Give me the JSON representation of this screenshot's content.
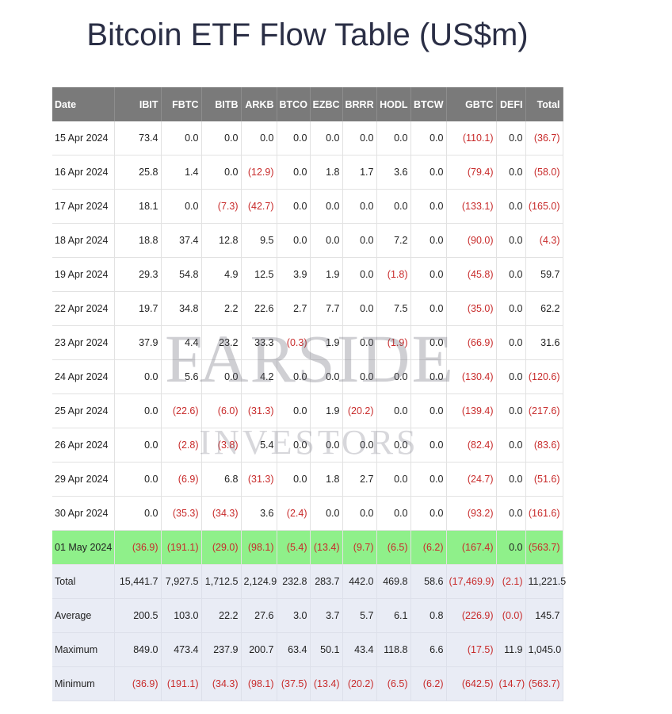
{
  "title": "Bitcoin ETF Flow Table (US$m)",
  "watermark": {
    "line1": "FARSIDE",
    "line2": "INVESTORS"
  },
  "colors": {
    "header_bg": "#7a7a7a",
    "negative": "#c82b2b",
    "highlight_row": "#8ff08a",
    "summary_bg": "#e9ecf5"
  },
  "table": {
    "headers": [
      "Date",
      "IBIT",
      "FBTC",
      "BITB",
      "ARKB",
      "BTCO",
      "EZBC",
      "BRRR",
      "HODL",
      "BTCW",
      "GBTC",
      "DEFI",
      "Total"
    ],
    "rows": [
      [
        "15 Apr 2024",
        "73.4",
        "0.0",
        "0.0",
        "0.0",
        "0.0",
        "0.0",
        "0.0",
        "0.0",
        "0.0",
        "(110.1)",
        "0.0",
        "(36.7)"
      ],
      [
        "16 Apr 2024",
        "25.8",
        "1.4",
        "0.0",
        "(12.9)",
        "0.0",
        "1.8",
        "1.7",
        "3.6",
        "0.0",
        "(79.4)",
        "0.0",
        "(58.0)"
      ],
      [
        "17 Apr 2024",
        "18.1",
        "0.0",
        "(7.3)",
        "(42.7)",
        "0.0",
        "0.0",
        "0.0",
        "0.0",
        "0.0",
        "(133.1)",
        "0.0",
        "(165.0)"
      ],
      [
        "18 Apr 2024",
        "18.8",
        "37.4",
        "12.8",
        "9.5",
        "0.0",
        "0.0",
        "0.0",
        "7.2",
        "0.0",
        "(90.0)",
        "0.0",
        "(4.3)"
      ],
      [
        "19 Apr 2024",
        "29.3",
        "54.8",
        "4.9",
        "12.5",
        "3.9",
        "1.9",
        "0.0",
        "(1.8)",
        "0.0",
        "(45.8)",
        "0.0",
        "59.7"
      ],
      [
        "22 Apr 2024",
        "19.7",
        "34.8",
        "2.2",
        "22.6",
        "2.7",
        "7.7",
        "0.0",
        "7.5",
        "0.0",
        "(35.0)",
        "0.0",
        "62.2"
      ],
      [
        "23 Apr 2024",
        "37.9",
        "4.4",
        "23.2",
        "33.3",
        "(0.3)",
        "1.9",
        "0.0",
        "(1.9)",
        "0.0",
        "(66.9)",
        "0.0",
        "31.6"
      ],
      [
        "24 Apr 2024",
        "0.0",
        "5.6",
        "0.0",
        "4.2",
        "0.0",
        "0.0",
        "0.0",
        "0.0",
        "0.0",
        "(130.4)",
        "0.0",
        "(120.6)"
      ],
      [
        "25 Apr 2024",
        "0.0",
        "(22.6)",
        "(6.0)",
        "(31.3)",
        "0.0",
        "1.9",
        "(20.2)",
        "0.0",
        "0.0",
        "(139.4)",
        "0.0",
        "(217.6)"
      ],
      [
        "26 Apr 2024",
        "0.0",
        "(2.8)",
        "(3.8)",
        "5.4",
        "0.0",
        "0.0",
        "0.0",
        "0.0",
        "0.0",
        "(82.4)",
        "0.0",
        "(83.6)"
      ],
      [
        "29 Apr 2024",
        "0.0",
        "(6.9)",
        "6.8",
        "(31.3)",
        "0.0",
        "1.8",
        "2.7",
        "0.0",
        "0.0",
        "(24.7)",
        "0.0",
        "(51.6)"
      ],
      [
        "30 Apr 2024",
        "0.0",
        "(35.3)",
        "(34.3)",
        "3.6",
        "(2.4)",
        "0.0",
        "0.0",
        "0.0",
        "0.0",
        "(93.2)",
        "0.0",
        "(161.6)"
      ],
      [
        "01 May 2024",
        "(36.9)",
        "(191.1)",
        "(29.0)",
        "(98.1)",
        "(5.4)",
        "(13.4)",
        "(9.7)",
        "(6.5)",
        "(6.2)",
        "(167.4)",
        "0.0",
        "(563.7)"
      ]
    ],
    "highlight_row_index": 12,
    "summary": [
      [
        "Total",
        "15,441.7",
        "7,927.5",
        "1,712.5",
        "2,124.9",
        "232.8",
        "283.7",
        "442.0",
        "469.8",
        "58.6",
        "(17,469.9)",
        "(2.1)",
        "11,221.5"
      ],
      [
        "Average",
        "200.5",
        "103.0",
        "22.2",
        "27.6",
        "3.0",
        "3.7",
        "5.7",
        "6.1",
        "0.8",
        "(226.9)",
        "(0.0)",
        "145.7"
      ],
      [
        "Maximum",
        "849.0",
        "473.4",
        "237.9",
        "200.7",
        "63.4",
        "50.1",
        "43.4",
        "118.8",
        "6.6",
        "(17.5)",
        "11.9",
        "1,045.0"
      ],
      [
        "Minimum",
        "(36.9)",
        "(191.1)",
        "(34.3)",
        "(98.1)",
        "(37.5)",
        "(13.4)",
        "(20.2)",
        "(6.5)",
        "(6.2)",
        "(642.5)",
        "(14.7)",
        "(563.7)"
      ]
    ]
  }
}
